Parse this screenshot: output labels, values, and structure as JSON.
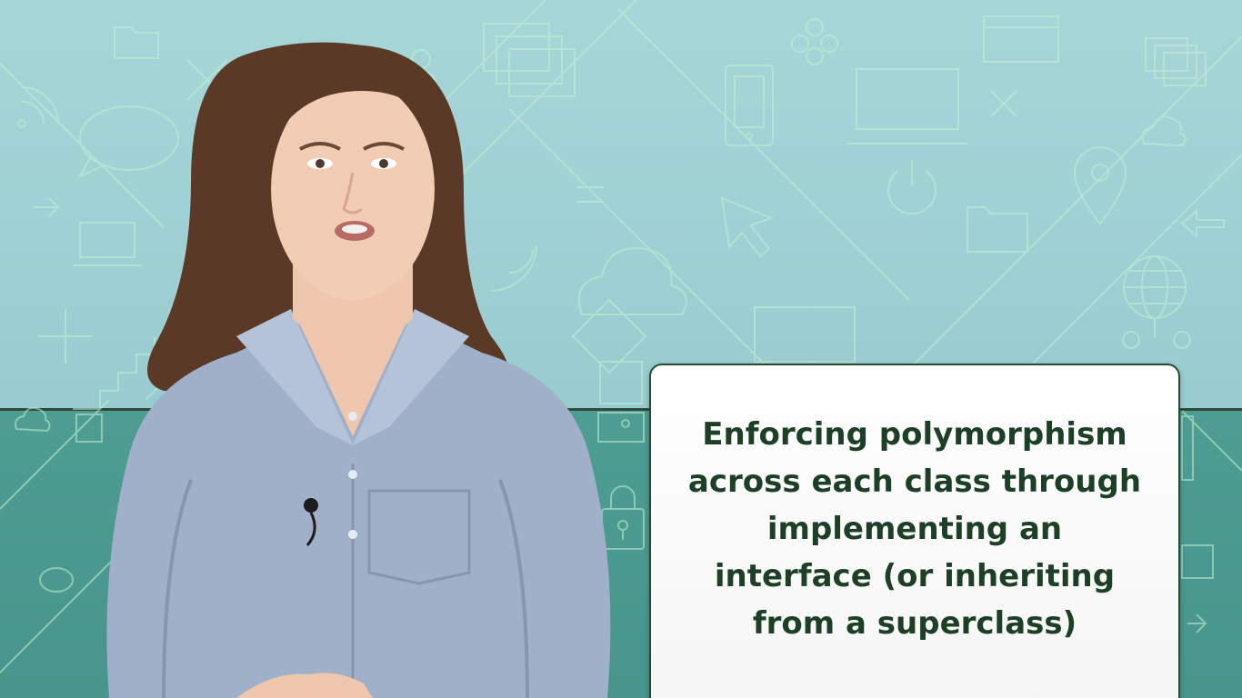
{
  "caption": {
    "lines": [
      "Enforcing polymorphism",
      "across each class through",
      "implementing an",
      "interface (or inheriting",
      "from a superclass)"
    ]
  },
  "colors": {
    "background_upper": "#a7d6d8",
    "background_lower": "#4e9d93",
    "pattern_line": "#c4f0d4",
    "caption_text": "#1d3f26",
    "caption_border": "#274a32",
    "shirt": "#9fb0c8",
    "hair": "#5a3a26"
  },
  "icons": [
    "folder-icon",
    "chat-bubble-icon",
    "user-icon",
    "window-icon",
    "phone-icon",
    "monitor-icon",
    "cloud-icon",
    "power-icon",
    "cursor-icon",
    "location-pin-icon",
    "globe-icon",
    "lock-icon",
    "wifi-icon",
    "people-icon",
    "arrow-icon",
    "plus-icon",
    "close-icon"
  ]
}
